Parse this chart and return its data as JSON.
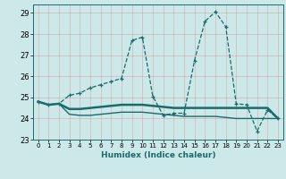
{
  "title": "",
  "xlabel": "Humidex (Indice chaleur)",
  "background_color": "#cce8e8",
  "grid_color": "#aacccc",
  "line_color": "#1a6b6b",
  "xlim": [
    -0.5,
    23.5
  ],
  "ylim": [
    23.0,
    29.4
  ],
  "yticks": [
    23,
    24,
    25,
    26,
    27,
    28,
    29
  ],
  "xticks": [
    0,
    1,
    2,
    3,
    4,
    5,
    6,
    7,
    8,
    9,
    10,
    11,
    12,
    13,
    14,
    15,
    16,
    17,
    18,
    19,
    20,
    21,
    22,
    23
  ],
  "line1_x": [
    0,
    1,
    2,
    3,
    4,
    5,
    6,
    7,
    8,
    9,
    10,
    11,
    12,
    13,
    14,
    15,
    16,
    17,
    18,
    19,
    20,
    21,
    22,
    23
  ],
  "line1_y": [
    24.8,
    24.65,
    24.7,
    25.1,
    25.2,
    25.45,
    25.6,
    25.75,
    25.9,
    27.7,
    27.85,
    25.05,
    24.15,
    24.25,
    24.25,
    26.75,
    28.6,
    29.05,
    28.35,
    24.7,
    24.65,
    23.4,
    24.4,
    24.0
  ],
  "line2_x": [
    0,
    1,
    2,
    3,
    4,
    5,
    6,
    7,
    8,
    9,
    10,
    11,
    12,
    13,
    14,
    15,
    16,
    17,
    18,
    19,
    20,
    21,
    22,
    23
  ],
  "line2_y": [
    24.8,
    24.65,
    24.7,
    24.45,
    24.45,
    24.5,
    24.55,
    24.6,
    24.65,
    24.65,
    24.65,
    24.6,
    24.55,
    24.5,
    24.5,
    24.5,
    24.5,
    24.5,
    24.5,
    24.5,
    24.5,
    24.5,
    24.5,
    24.0
  ],
  "line3_x": [
    0,
    1,
    2,
    3,
    4,
    5,
    6,
    7,
    8,
    9,
    10,
    11,
    12,
    13,
    14,
    15,
    16,
    17,
    18,
    19,
    20,
    21,
    22,
    23
  ],
  "line3_y": [
    24.8,
    24.65,
    24.7,
    24.2,
    24.15,
    24.15,
    24.2,
    24.25,
    24.3,
    24.3,
    24.3,
    24.25,
    24.2,
    24.15,
    24.1,
    24.1,
    24.1,
    24.1,
    24.05,
    24.0,
    24.0,
    24.0,
    24.0,
    24.0
  ]
}
